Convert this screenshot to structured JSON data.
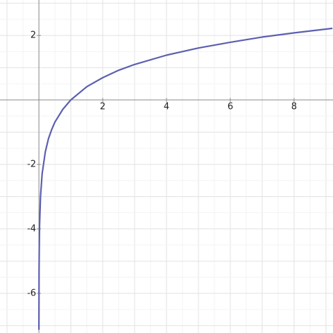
{
  "chart_data": {
    "type": "line",
    "x": [
      0.0008,
      0.002,
      0.005,
      0.01,
      0.02,
      0.05,
      0.1,
      0.2,
      0.3,
      0.4,
      0.5,
      0.75,
      1,
      1.5,
      2,
      2.5,
      3,
      4,
      5,
      6,
      7,
      8,
      9.2
    ],
    "values": [
      -7.13,
      -6.21,
      -5.3,
      -4.61,
      -3.91,
      -3.0,
      -2.3,
      -1.61,
      -1.2,
      -0.92,
      -0.69,
      -0.29,
      0,
      0.41,
      0.69,
      0.92,
      1.1,
      1.39,
      1.61,
      1.79,
      1.95,
      2.08,
      2.22
    ],
    "color": "#5b5faf",
    "xlim": [
      -1.22,
      9.22
    ],
    "ylim": [
      -7.23,
      3.1
    ],
    "xticks": [
      2,
      4,
      6,
      8
    ],
    "yticks": [
      2,
      -2,
      -4,
      -6
    ],
    "grid": true
  }
}
